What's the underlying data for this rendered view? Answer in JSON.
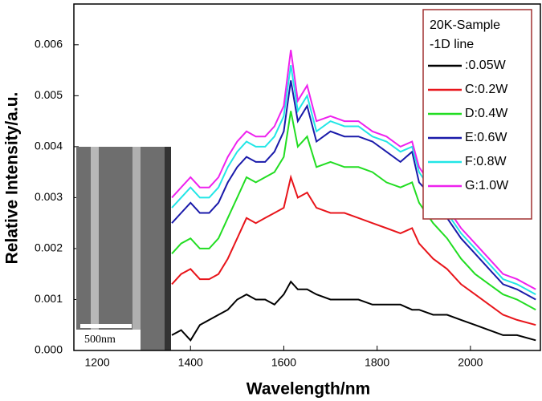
{
  "chart_data": {
    "type": "line",
    "x_label": "Wavelength/nm",
    "y_label": "Relative Intensity/a.u.",
    "legend_title": [
      "20K-Sample",
      "-1D line"
    ],
    "legend": "upper right",
    "inset_label": "500nm",
    "xlim": [
      1150,
      2150
    ],
    "ylim": [
      0,
      0.0068
    ],
    "xticks": [
      1200,
      1400,
      1600,
      1800,
      2000
    ],
    "yticks": [
      {
        "value": 0,
        "label": "0.000"
      },
      0.001,
      0.002,
      0.003,
      0.004,
      0.005,
      0.006
    ],
    "x": [
      1360,
      1380,
      1400,
      1420,
      1440,
      1460,
      1480,
      1500,
      1520,
      1540,
      1560,
      1580,
      1600,
      1615,
      1630,
      1650,
      1670,
      1700,
      1730,
      1760,
      1790,
      1820,
      1850,
      1875,
      1890,
      1920,
      1950,
      1980,
      2010,
      2040,
      2070,
      2100,
      2140
    ],
    "series": [
      {
        "name": ":0.05W",
        "color": "#000000",
        "values": [
          0.0003,
          0.0004,
          0.0002,
          0.0005,
          0.0006,
          0.0007,
          0.0008,
          0.001,
          0.0011,
          0.001,
          0.001,
          0.0009,
          0.0011,
          0.00135,
          0.0012,
          0.0012,
          0.0011,
          0.001,
          0.001,
          0.001,
          0.0009,
          0.0009,
          0.0009,
          0.0008,
          0.0008,
          0.0007,
          0.0007,
          0.0006,
          0.0005,
          0.0004,
          0.0003,
          0.0003,
          0.0002
        ]
      },
      {
        "name": "C:0.2W",
        "color": "#e8151b",
        "values": [
          0.0013,
          0.0015,
          0.0016,
          0.0014,
          0.0014,
          0.0015,
          0.0018,
          0.0022,
          0.0026,
          0.0025,
          0.0026,
          0.0027,
          0.0028,
          0.0034,
          0.003,
          0.0031,
          0.0028,
          0.0027,
          0.0027,
          0.0026,
          0.0025,
          0.0024,
          0.0023,
          0.0024,
          0.0021,
          0.0018,
          0.0016,
          0.0013,
          0.0011,
          0.0009,
          0.0007,
          0.0006,
          0.0005
        ]
      },
      {
        "name": "D:0.4W",
        "color": "#22dd22",
        "values": [
          0.0019,
          0.0021,
          0.0022,
          0.002,
          0.002,
          0.0022,
          0.0026,
          0.003,
          0.0034,
          0.0033,
          0.0034,
          0.0035,
          0.0038,
          0.0047,
          0.004,
          0.0042,
          0.0036,
          0.0037,
          0.0036,
          0.0036,
          0.0035,
          0.0033,
          0.0032,
          0.0033,
          0.0029,
          0.0025,
          0.0022,
          0.0018,
          0.0015,
          0.0013,
          0.0011,
          0.001,
          0.0008
        ]
      },
      {
        "name": "E:0.6W",
        "color": "#1a1aaa",
        "values": [
          0.0025,
          0.0027,
          0.0029,
          0.0027,
          0.0027,
          0.0029,
          0.0033,
          0.0036,
          0.0038,
          0.0037,
          0.0037,
          0.0039,
          0.0043,
          0.0053,
          0.0045,
          0.0048,
          0.0041,
          0.0043,
          0.0042,
          0.0042,
          0.0041,
          0.0039,
          0.0037,
          0.0039,
          0.0033,
          0.003,
          0.0026,
          0.0022,
          0.0019,
          0.0016,
          0.0013,
          0.0012,
          0.001
        ]
      },
      {
        "name": "F:0.8W",
        "color": "#22e6e6",
        "values": [
          0.0028,
          0.003,
          0.0032,
          0.003,
          0.003,
          0.0032,
          0.0036,
          0.0039,
          0.0041,
          0.004,
          0.004,
          0.0042,
          0.0046,
          0.0056,
          0.0047,
          0.005,
          0.0043,
          0.0045,
          0.0044,
          0.0044,
          0.0042,
          0.0041,
          0.0039,
          0.004,
          0.0035,
          0.0031,
          0.0027,
          0.0023,
          0.002,
          0.0017,
          0.0014,
          0.0013,
          0.0011
        ]
      },
      {
        "name": "G:1.0W",
        "color": "#ee22ee",
        "values": [
          0.003,
          0.0032,
          0.0034,
          0.0032,
          0.0032,
          0.0034,
          0.0038,
          0.0041,
          0.0043,
          0.0042,
          0.0042,
          0.0044,
          0.0048,
          0.0059,
          0.0049,
          0.0052,
          0.0045,
          0.0046,
          0.0045,
          0.0045,
          0.0043,
          0.0042,
          0.004,
          0.0041,
          0.0036,
          0.0032,
          0.0028,
          0.0024,
          0.0021,
          0.0018,
          0.0015,
          0.0014,
          0.0012
        ]
      }
    ]
  }
}
